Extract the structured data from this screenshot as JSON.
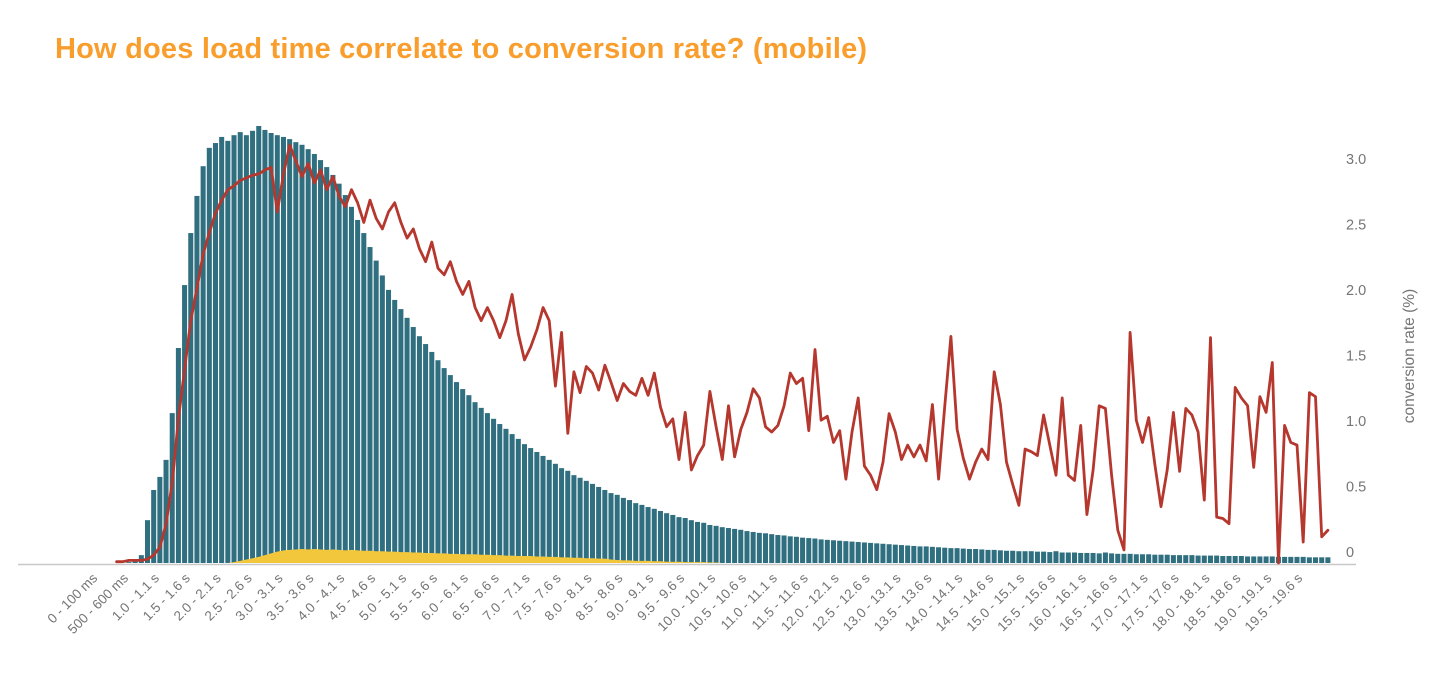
{
  "title": "How does load time correlate to conversion rate? (mobile)",
  "colors": {
    "title_orange": "#F99E2C",
    "bar_teal": "#2F6F80",
    "area_yellow": "#F3C73C",
    "line_red": "#B5372D",
    "axis_text_gray": "#757575",
    "axis_line_gray": "#C8C8C8",
    "background": "#FFFFFF"
  },
  "chart_data": {
    "type": "bar+area+line",
    "title": "How does load time correlate to conversion rate? (mobile)",
    "grid": "off",
    "legend": "none",
    "x_axis": {
      "bin_width_ms": 100,
      "num_bins": 200,
      "tick_every_bins": 5,
      "labels": [
        "0 - 100 ms",
        "500 - 600 ms",
        "1.0 - 1.1 s",
        "1.5 - 1.6 s",
        "2.0 - 2.1 s",
        "2.5 - 2.6 s",
        "3.0 - 3.1 s",
        "3.5 - 3.6 s",
        "4.0 - 4.1 s",
        "4.5 - 4.6 s",
        "5.0 - 5.1 s",
        "5.5 - 5.6 s",
        "6.0 - 6.1 s",
        "6.5 - 6.6 s",
        "7.0 - 7.1 s",
        "7.5 - 7.6 s",
        "8.0 - 8.1 s",
        "8.5 - 8.6 s",
        "9.0 - 9.1 s",
        "9.5 - 9.6 s",
        "10.0 - 10.1 s",
        "10.5 - 10.6 s",
        "11.0 - 11.1 s",
        "11.5 - 11.6 s",
        "12.0 - 12.1 s",
        "12.5 - 12.6 s",
        "13.0 - 13.1 s",
        "13.5 - 13.6 s",
        "14.0 - 14.1 s",
        "14.5 - 14.6 s",
        "15.0 - 15.1 s",
        "15.5 - 15.6 s",
        "16.0 - 16.1 s",
        "16.5 - 16.6 s",
        "17.0 - 17.1 s",
        "17.5 - 17.6 s",
        "18.0 - 18.1 s",
        "18.5 - 18.6 s",
        "19.0 - 19.1 s",
        "19.5 - 19.6 s"
      ]
    },
    "y_axis_right": {
      "label": "conversion rate (%)",
      "ticks": [
        "0",
        "0.5",
        "1.0",
        "1.5",
        "2.0",
        "2.5",
        "3.0"
      ],
      "range": [
        0,
        3.3
      ]
    },
    "series": [
      {
        "name": "traffic-volume-bars",
        "type": "bar",
        "unit": "percent of peak traffic",
        "values": [
          0,
          0,
          0,
          0,
          0,
          0.2,
          0.5,
          1.8,
          9.8,
          16.7,
          19.7,
          23.6,
          34.3,
          49.2,
          63.6,
          75.5,
          84,
          90.8,
          95,
          96.1,
          97.5,
          96.6,
          97.9,
          98.6,
          97.9,
          98.9,
          100,
          99.1,
          98.4,
          97.9,
          97.5,
          97,
          96.3,
          95.7,
          94.7,
          93.6,
          92.2,
          90.6,
          88.8,
          86.8,
          84.2,
          81.5,
          78.5,
          75.5,
          72.3,
          69.2,
          65.8,
          62.5,
          60.2,
          58.1,
          56.1,
          54,
          51.9,
          50.1,
          48.3,
          46.4,
          44.6,
          43,
          41.4,
          39.8,
          38.4,
          36.8,
          35.5,
          34.3,
          33,
          31.8,
          30.7,
          29.5,
          28.4,
          27.2,
          26.3,
          25.4,
          24.5,
          23.6,
          22.7,
          21.7,
          21.1,
          20.1,
          19.5,
          18.8,
          18.1,
          17.4,
          16.7,
          16,
          15.6,
          14.9,
          14.4,
          13.7,
          13.3,
          12.8,
          12.4,
          11.9,
          11.4,
          11,
          10.5,
          10.3,
          9.8,
          9.4,
          9.2,
          8.7,
          8.5,
          8.2,
          8,
          7.8,
          7.6,
          7.3,
          7.1,
          6.9,
          6.8,
          6.6,
          6.4,
          6.3,
          6.1,
          6,
          5.8,
          5.7,
          5.6,
          5.4,
          5.3,
          5.2,
          5.1,
          5,
          4.9,
          4.8,
          4.7,
          4.6,
          4.5,
          4.4,
          4.3,
          4.2,
          4.1,
          4,
          3.9,
          3.8,
          3.8,
          3.7,
          3.6,
          3.5,
          3.4,
          3.4,
          3.3,
          3.2,
          3.2,
          3.1,
          3,
          3,
          2.9,
          2.8,
          2.8,
          2.7,
          2.7,
          2.7,
          2.6,
          2.6,
          2.5,
          2.7,
          2.4,
          2.4,
          2.4,
          2.3,
          2.3,
          2.3,
          2.2,
          2.4,
          2.2,
          2.1,
          2.1,
          2.1,
          2,
          2,
          2,
          1.9,
          1.9,
          1.9,
          1.8,
          1.8,
          1.8,
          1.8,
          1.7,
          1.7,
          1.7,
          1.7,
          1.6,
          1.6,
          1.6,
          1.6,
          1.5,
          1.5,
          1.5,
          1.5,
          1.5,
          1.4,
          1.4,
          1.4,
          1.4,
          1.4,
          1.3,
          1.3,
          1.3,
          1.3
        ]
      },
      {
        "name": "conversions-volume-area",
        "type": "area",
        "unit": "percent of peak traffic",
        "values": [
          0,
          0,
          0,
          0,
          0,
          0,
          0,
          0,
          0,
          0,
          0,
          0,
          0,
          0,
          0,
          0,
          0,
          0,
          0,
          0,
          0,
          0,
          0.2,
          0.5,
          0.8,
          1.1,
          1.4,
          1.8,
          2.2,
          2.6,
          2.9,
          3,
          3.1,
          3.2,
          3.1,
          3.2,
          3.1,
          3,
          3.1,
          3,
          2.9,
          3,
          2.9,
          2.8,
          2.8,
          2.7,
          2.7,
          2.6,
          2.6,
          2.5,
          2.5,
          2.4,
          2.4,
          2.3,
          2.3,
          2.2,
          2.2,
          2.1,
          2.1,
          2,
          2,
          2,
          1.9,
          1.9,
          1.8,
          1.8,
          1.7,
          1.7,
          1.6,
          1.6,
          1.6,
          1.5,
          1.5,
          1.4,
          1.4,
          1.3,
          1.3,
          1.2,
          1.2,
          1.1,
          1.1,
          1,
          1,
          0.8,
          0.7,
          0.6,
          0.6,
          0.5,
          0.5,
          0.5,
          0.4,
          0.4,
          0.3,
          0.3,
          0.3,
          0.2,
          0.2,
          0.2,
          0.2,
          0.1,
          0.1,
          0,
          0,
          0,
          0,
          0,
          0,
          0,
          0,
          0,
          0,
          0,
          0,
          0,
          0,
          0,
          0,
          0,
          0,
          0,
          0,
          0,
          0,
          0,
          0,
          0,
          0,
          0,
          0,
          0,
          0,
          0,
          0,
          0,
          0,
          0,
          0,
          0,
          0,
          0,
          0,
          0,
          0,
          0,
          0,
          0,
          0,
          0,
          0,
          0,
          0,
          0,
          0,
          0,
          0,
          0,
          0,
          0,
          0,
          0,
          0,
          0,
          0,
          0,
          0,
          0,
          0,
          0,
          0,
          0,
          0,
          0,
          0,
          0,
          0,
          0,
          0,
          0,
          0,
          0,
          0,
          0,
          0,
          0,
          0,
          0,
          0,
          0,
          0,
          0,
          0,
          0,
          0,
          0,
          0,
          0,
          0,
          0,
          0,
          0
        ]
      },
      {
        "name": "conversion-rate-line",
        "type": "line",
        "unit": "percent",
        "values": [
          null,
          null,
          null,
          0.01,
          0.01,
          0.02,
          0.02,
          0.02,
          0.03,
          0.06,
          0.12,
          0.3,
          0.62,
          1.1,
          1.48,
          1.85,
          2.1,
          2.36,
          2.52,
          2.67,
          2.77,
          2.85,
          2.88,
          2.92,
          2.94,
          2.96,
          2.97,
          3.0,
          3.02,
          2.68,
          2.97,
          3.19,
          3.07,
          2.95,
          3.05,
          2.9,
          3.0,
          2.85,
          2.95,
          2.8,
          2.72,
          2.85,
          2.75,
          2.6,
          2.77,
          2.63,
          2.55,
          2.68,
          2.75,
          2.6,
          2.48,
          2.55,
          2.4,
          2.3,
          2.45,
          2.25,
          2.2,
          2.3,
          2.15,
          2.05,
          2.15,
          1.95,
          1.85,
          1.95,
          1.85,
          1.72,
          1.85,
          2.05,
          1.75,
          1.55,
          1.65,
          1.78,
          1.95,
          1.85,
          1.35,
          1.76,
          0.99,
          1.46,
          1.3,
          1.5,
          1.45,
          1.32,
          1.51,
          1.38,
          1.24,
          1.37,
          1.31,
          1.28,
          1.41,
          1.28,
          1.45,
          1.19,
          1.04,
          1.1,
          0.79,
          1.15,
          0.71,
          0.82,
          0.9,
          1.31,
          1.04,
          0.79,
          1.2,
          0.81,
          1.02,
          1.15,
          1.33,
          1.26,
          1.04,
          1.0,
          1.05,
          1.2,
          1.45,
          1.37,
          1.41,
          1.01,
          1.63,
          1.09,
          1.12,
          0.92,
          1.01,
          0.64,
          1.0,
          1.26,
          0.74,
          0.67,
          0.56,
          0.77,
          1.14,
          1.0,
          0.79,
          0.9,
          0.81,
          0.9,
          0.78,
          1.21,
          0.64,
          1.2,
          1.73,
          1.02,
          0.8,
          0.64,
          0.77,
          0.87,
          0.79,
          1.46,
          1.21,
          0.77,
          0.6,
          0.44,
          0.87,
          0.85,
          0.82,
          1.13,
          0.9,
          0.67,
          1.26,
          0.67,
          0.63,
          1.05,
          0.37,
          0.71,
          1.2,
          1.18,
          0.67,
          0.25,
          0.1,
          1.76,
          1.09,
          0.92,
          1.11,
          0.75,
          0.43,
          0.71,
          1.15,
          0.7,
          1.18,
          1.13,
          1.0,
          0.48,
          1.72,
          0.35,
          0.34,
          0.3,
          1.34,
          1.26,
          1.2,
          0.73,
          1.27,
          1.15,
          1.53,
          0.0,
          1.05,
          0.92,
          0.9,
          0.16,
          1.3,
          1.27,
          0.2,
          0.25
        ]
      }
    ]
  }
}
